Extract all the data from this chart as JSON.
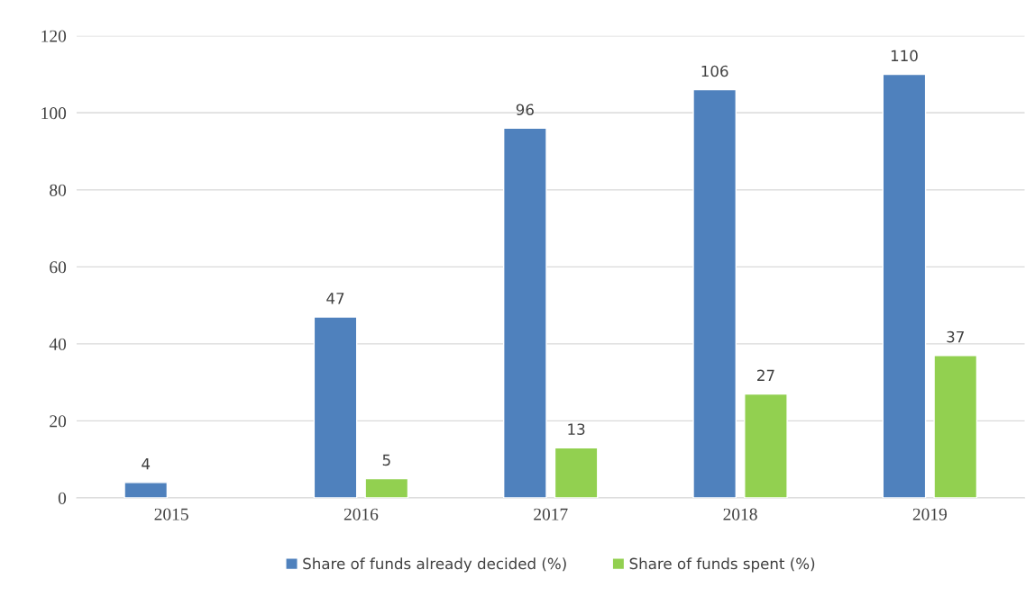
{
  "chart_data": {
    "type": "bar",
    "categories": [
      "2015",
      "2016",
      "2017",
      "2018",
      "2019"
    ],
    "series": [
      {
        "name": "Share of funds already decided (%)",
        "color": "#4f81bd",
        "values": [
          4,
          47,
          96,
          106,
          110
        ]
      },
      {
        "name": "Share of funds spent (%)",
        "color": "#92d050",
        "values": [
          null,
          5,
          13,
          27,
          37
        ]
      }
    ],
    "ylim": [
      0,
      120
    ],
    "yticks": [
      0,
      20,
      40,
      60,
      80,
      100,
      120
    ],
    "grid": "y",
    "legend": "bottom",
    "data_labels": true
  }
}
